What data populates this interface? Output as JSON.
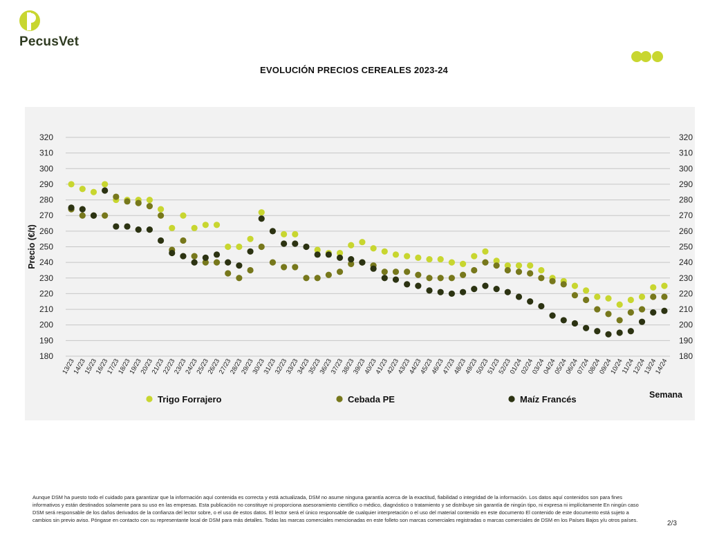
{
  "brand": {
    "name": "PecusVet",
    "color": "#c8d630"
  },
  "page": {
    "number": "2/3"
  },
  "disclaimer": "Aunque DSM ha puesto todo el cuidado para garantizar que la información aquí contenida es correcta y está actualizada, DSM no asume ninguna garantía acerca de la exactitud, fiabilidad o integridad de la información. Los datos aquí contenidos son para fines informativos y están destinados solamente para su uso en las empresas. Esta publicación no constituye ni proporciona asesoramiento científico o médico, diagnóstico o tratamiento y se distribuye sin garantía de ningún tipo, ni expresa ni implícitamente En ningún caso DSM será responsable de los daños derivados de la confianza del lector sobre, o el uso de estos datos. El lector será el único responsable de cualquier interpretación o el uso del material contenido en este documento El contenido de este documento está sujeto a cambios sin previo aviso. Póngase en contacto con su representante local de DSM para más detalles. Todas las marcas comerciales mencionadas en este folleto son marcas comerciales registradas o marcas comerciales de DSM en los Países Bajos y/u otros países.",
  "chart_data": {
    "type": "scatter",
    "title": "EVOLUCIÓN PRECIOS CEREALES 2023-24",
    "ylabel": "Precio (€/t)",
    "xlabel": "Semana",
    "ylim": [
      180,
      320
    ],
    "yticks": [
      180,
      190,
      200,
      210,
      220,
      230,
      240,
      250,
      260,
      270,
      280,
      290,
      300,
      310,
      320
    ],
    "grid": true,
    "legend": "bottom",
    "categories": [
      "13/23",
      "14/23",
      "15/23",
      "16/23",
      "17/23",
      "18/23",
      "19/23",
      "20/23",
      "21/23",
      "22/23",
      "23/23",
      "24/23",
      "25/23",
      "26/23",
      "27/23",
      "28/23",
      "29/23",
      "30/23",
      "31/23",
      "32/23",
      "33/23",
      "34/23",
      "35/23",
      "36/23",
      "37/23",
      "38/23",
      "39/23",
      "40/23",
      "41/23",
      "42/23",
      "43/23",
      "44/23",
      "45/23",
      "46/23",
      "47/23",
      "48/23",
      "49/23",
      "50/23",
      "51/23",
      "52/23",
      "01/24",
      "02/24",
      "03/24",
      "04/24",
      "05/24",
      "06/24",
      "07/24",
      "08/24",
      "09/24",
      "10/24",
      "11/24",
      "12/24",
      "13/24",
      "14/24"
    ],
    "series": [
      {
        "name": "Trigo Forrajero",
        "color": "#c8d630",
        "values": [
          290,
          287,
          285,
          290,
          280,
          280,
          280,
          280,
          274,
          262,
          270,
          262,
          264,
          264,
          250,
          250,
          255,
          272,
          null,
          258,
          258,
          null,
          248,
          246,
          246,
          251,
          253,
          249,
          247,
          245,
          244,
          243,
          242,
          242,
          240,
          239,
          244,
          247,
          241,
          238,
          238,
          238,
          235,
          230,
          228,
          225,
          222,
          218,
          217,
          213,
          216,
          218,
          224,
          225
        ]
      },
      {
        "name": "Cebada PE",
        "color": "#77781c",
        "values": [
          274,
          270,
          270,
          270,
          282,
          279,
          278,
          276,
          270,
          248,
          254,
          244,
          240,
          240,
          233,
          230,
          235,
          250,
          240,
          237,
          237,
          230,
          230,
          232,
          234,
          239,
          240,
          238,
          234,
          234,
          234,
          232,
          230,
          230,
          230,
          232,
          235,
          240,
          238,
          235,
          234,
          233,
          230,
          228,
          226,
          219,
          216,
          210,
          207,
          203,
          208,
          210,
          218,
          218
        ]
      },
      {
        "name": "Maíz Francés",
        "color": "#2c3312",
        "values": [
          275,
          274,
          270,
          286,
          263,
          263,
          261,
          261,
          254,
          246,
          244,
          240,
          243,
          245,
          240,
          238,
          247,
          268,
          260,
          252,
          252,
          250,
          245,
          245,
          243,
          242,
          240,
          236,
          230,
          229,
          226,
          225,
          222,
          221,
          220,
          221,
          223,
          225,
          223,
          221,
          218,
          215,
          212,
          206,
          203,
          201,
          198,
          196,
          194,
          195,
          196,
          202,
          208,
          209
        ]
      }
    ]
  }
}
